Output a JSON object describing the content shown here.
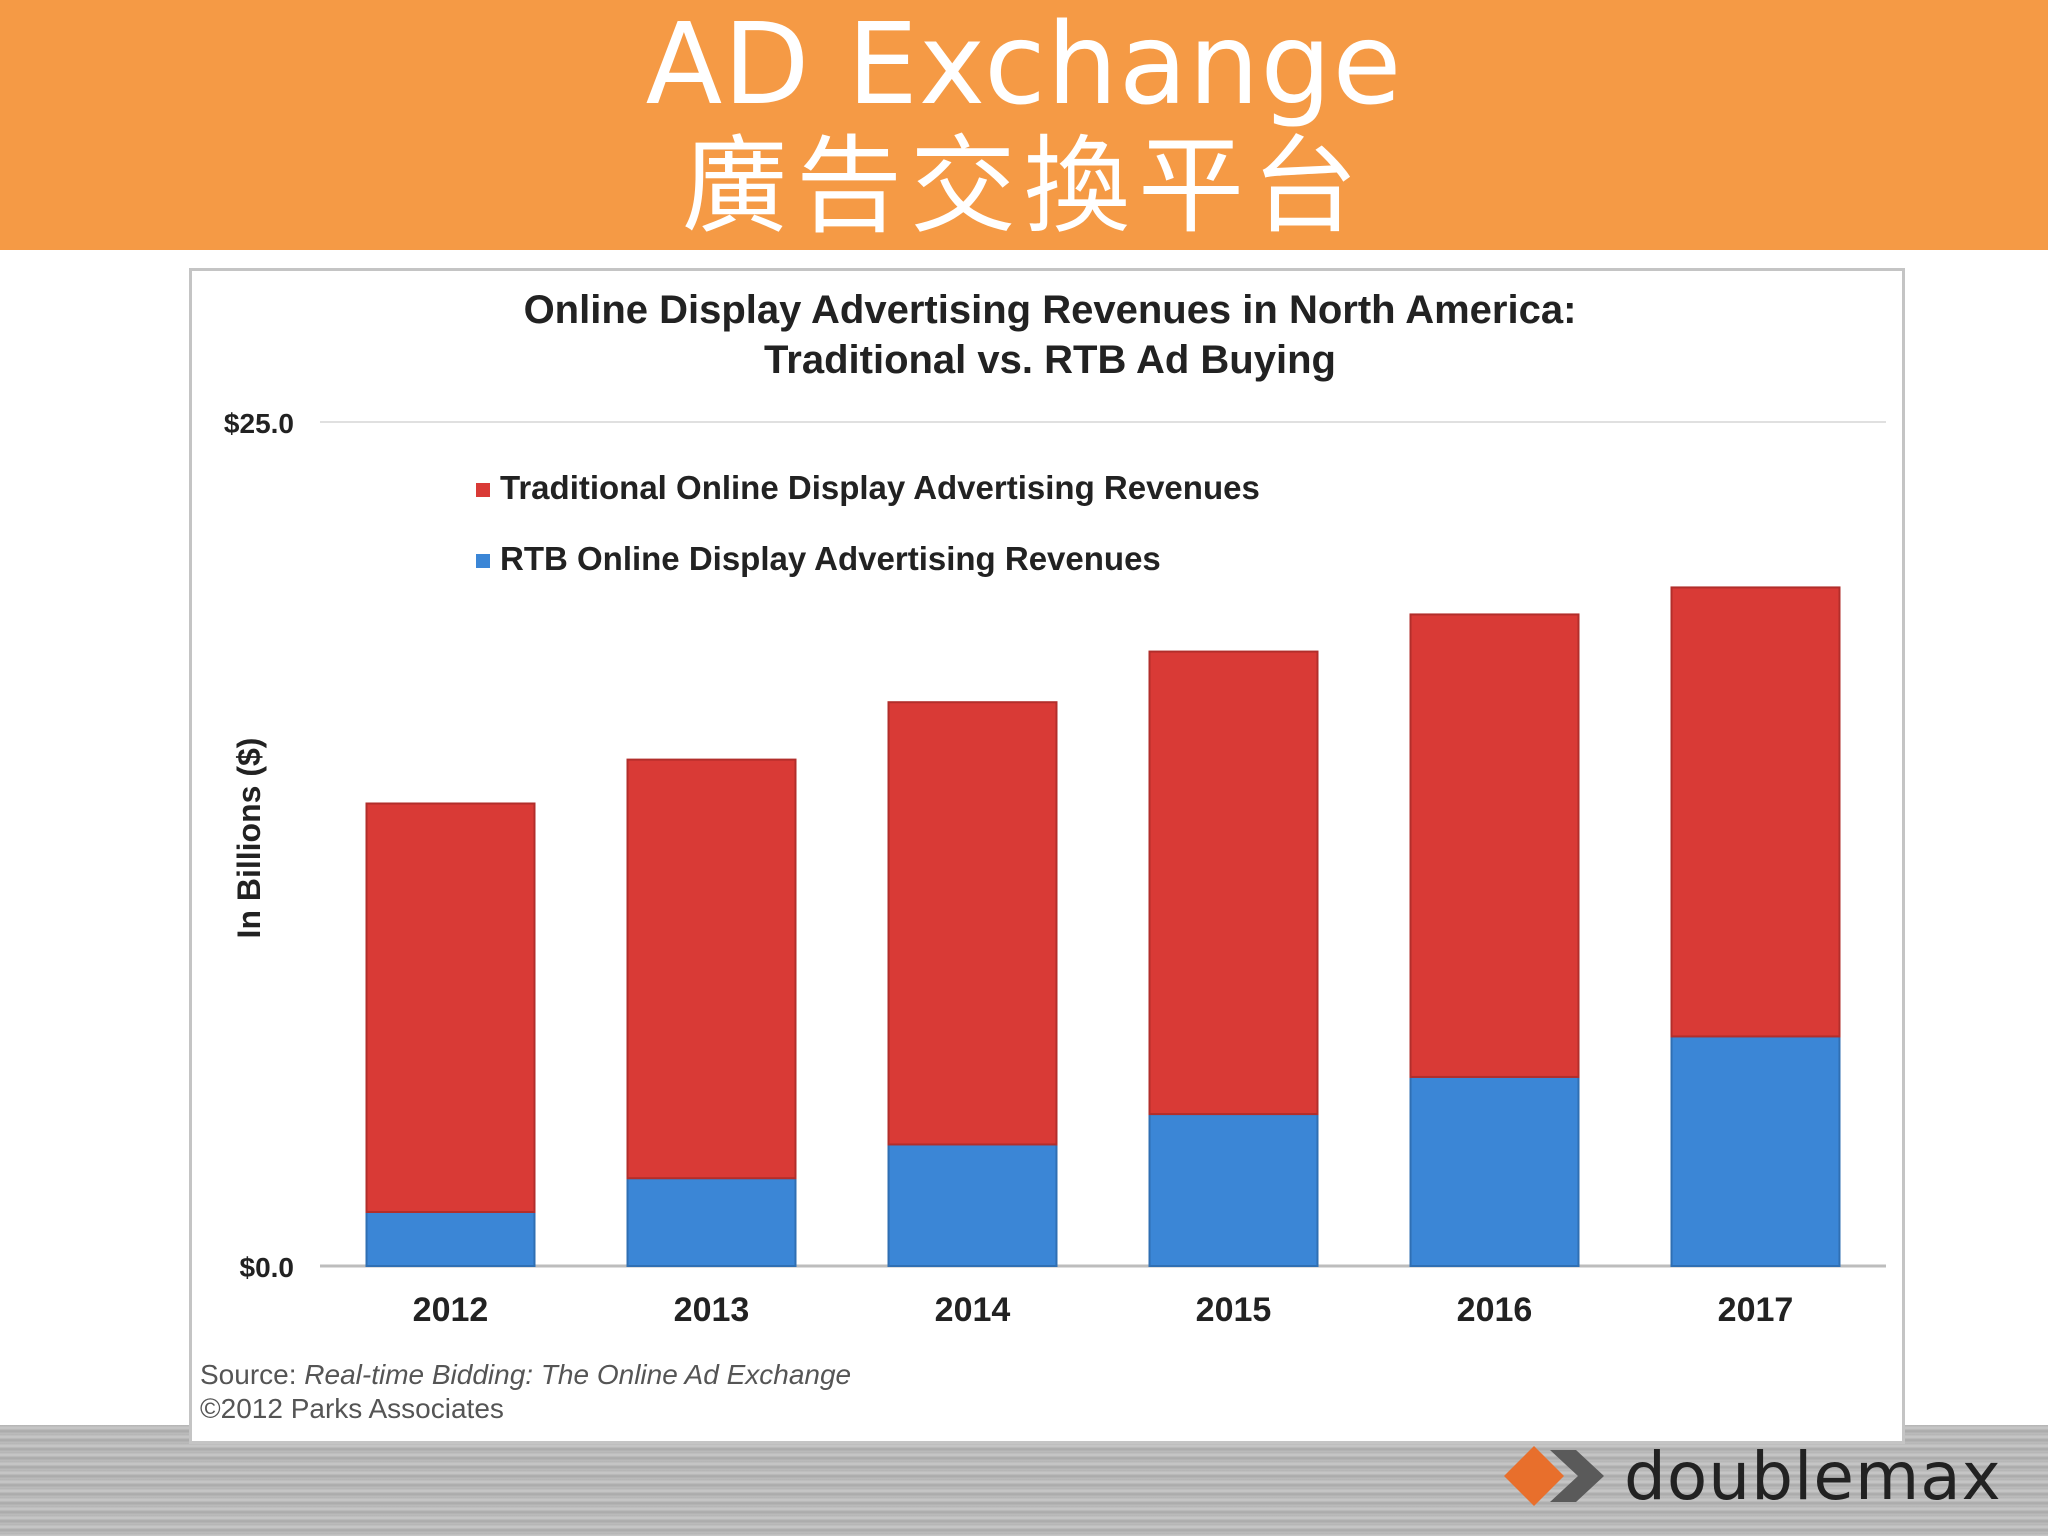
{
  "header": {
    "title": "AD Exchange",
    "subtitle": "廣告交換平台"
  },
  "colors": {
    "header_bg": "#f59a45",
    "traditional": "#d93a36",
    "rtb": "#3b86d6"
  },
  "chart_data": {
    "type": "bar",
    "stacked": true,
    "title_line1": "Online Display Advertising Revenues in North America:",
    "title_line2": "Traditional vs. RTB Ad Buying",
    "ylabel": "In Billions ($)",
    "xlabel": "",
    "ylim": [
      0,
      25
    ],
    "ytick_labels": [
      "$25.0",
      "$0.0"
    ],
    "yticks": [
      25,
      0
    ],
    "categories": [
      "2012",
      "2013",
      "2014",
      "2015",
      "2016",
      "2017"
    ],
    "series": [
      {
        "name": "RTB Online Display Advertising Revenues",
        "values": [
          1.6,
          2.6,
          3.6,
          4.5,
          5.6,
          6.8
        ],
        "color": "#3b86d6"
      },
      {
        "name": "Traditional Online Display Advertising Revenues",
        "values": [
          12.1,
          12.4,
          13.1,
          13.7,
          13.7,
          13.3
        ],
        "color": "#d93a36"
      }
    ],
    "legend": {
      "placement": "top-left",
      "entries": [
        {
          "label": "Traditional Online Display Advertising Revenues",
          "color": "#d93a36"
        },
        {
          "label": "RTB Online Display Advertising Revenues",
          "color": "#3b86d6"
        }
      ]
    },
    "grid": false,
    "source_prefix": "Source: ",
    "source_title": "Real-time Bidding: The Online Ad Exchange",
    "copyright": "©2012 Parks Associates"
  },
  "logo": {
    "text": "doublemax",
    "mark_colors": [
      "#e86f2c",
      "#5a5a5a"
    ]
  }
}
